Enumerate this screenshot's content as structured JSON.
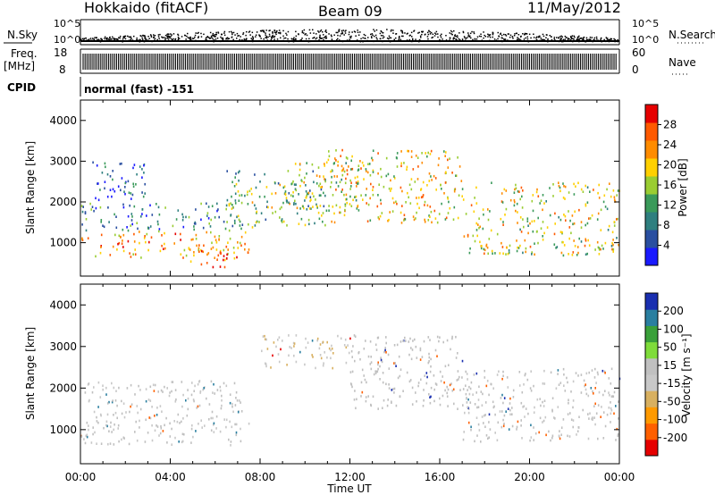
{
  "header": {
    "radar": "Hokkaido (fitACF)",
    "beam": "Beam 09",
    "date": "11/May/2012"
  },
  "aux_panels": {
    "nsky_label": "N.Sky",
    "nsearch_label": "N.Search",
    "nsky_ticks": [
      "10^5",
      "10^0"
    ],
    "nsearch_ticks": [
      "10^5",
      "10^0"
    ],
    "freq_label": "Freq.",
    "freq_unit": "[MHz]",
    "freq_ticks": [
      "18",
      "8"
    ],
    "nave_label": "Nave",
    "nave_ticks": [
      "60",
      "0"
    ],
    "cpid_label": "CPID",
    "cpid_text": "normal (fast) -151"
  },
  "colors": {
    "power_scale": [
      "#1a1aff",
      "#2a4fa0",
      "#2f7f7f",
      "#3a9a5a",
      "#9acd32",
      "#ffd000",
      "#ff8c00",
      "#ff5a00",
      "#e60000"
    ],
    "velocity_scale": [
      "#e60000",
      "#ff6000",
      "#ff9a00",
      "#d8b060",
      "#c8c8c8",
      "#c0c0c0",
      "#7fdc3a",
      "#3aa03a",
      "#2a7fa0",
      "#1a2fb0"
    ],
    "power_ticks_color": "#000000"
  },
  "chart_data": [
    {
      "type": "heatmap",
      "panel": "power",
      "ylabel": "Slant Range [km]",
      "ylim": [
        180,
        4500
      ],
      "yticks": [
        "1000",
        "2000",
        "3000",
        "4000"
      ],
      "xlim": [
        0,
        24
      ],
      "colorbar": {
        "label": "Power [dB]",
        "ticks": [
          "4",
          "8",
          "12",
          "16",
          "20",
          "24",
          "28"
        ],
        "range": [
          0,
          32
        ]
      },
      "regions": [
        {
          "t": [
            0,
            7.5
          ],
          "r": [
            650,
            1300
          ],
          "level": 22
        },
        {
          "t": [
            0,
            7.2
          ],
          "r": [
            1300,
            2000
          ],
          "level": 9
        },
        {
          "t": [
            0.5,
            3
          ],
          "r": [
            2000,
            3000
          ],
          "level": 6
        },
        {
          "t": [
            6.5,
            11
          ],
          "r": [
            1400,
            2800
          ],
          "level": 14
        },
        {
          "t": [
            9,
            13
          ],
          "r": [
            1800,
            3000
          ],
          "level": 16
        },
        {
          "t": [
            11,
            17
          ],
          "r": [
            1500,
            3300
          ],
          "level": 20
        },
        {
          "t": [
            17,
            24
          ],
          "r": [
            700,
            2500
          ],
          "level": 18
        },
        {
          "t": [
            4.5,
            7
          ],
          "r": [
            400,
            900
          ],
          "level": 28
        }
      ]
    },
    {
      "type": "heatmap",
      "panel": "velocity",
      "xlabel": "Time UT",
      "ylabel": "Slant Range [km]",
      "ylim": [
        180,
        4500
      ],
      "yticks": [
        "1000",
        "2000",
        "3000",
        "4000"
      ],
      "xlim": [
        0,
        24
      ],
      "xticks": [
        "00:00",
        "04:00",
        "08:00",
        "12:00",
        "16:00",
        "20:00",
        "00:00"
      ],
      "colorbar": {
        "label": "Velocity [m s⁻¹]",
        "ticks": [
          "200",
          "100",
          "50",
          "15",
          "-15",
          "-50",
          "-100",
          "-200"
        ],
        "range": [
          -250,
          250
        ]
      },
      "regions": [
        {
          "t": [
            0,
            7.5
          ],
          "r": [
            650,
            1300
          ],
          "v": 0
        },
        {
          "t": [
            0,
            7.2
          ],
          "r": [
            1300,
            2200
          ],
          "v": 0
        },
        {
          "t": [
            8,
            12
          ],
          "r": [
            2500,
            3300
          ],
          "v": -40
        },
        {
          "t": [
            12,
            17
          ],
          "r": [
            1500,
            3300
          ],
          "v": 30
        },
        {
          "t": [
            17,
            24
          ],
          "r": [
            700,
            2500
          ],
          "v": 5
        }
      ]
    }
  ]
}
